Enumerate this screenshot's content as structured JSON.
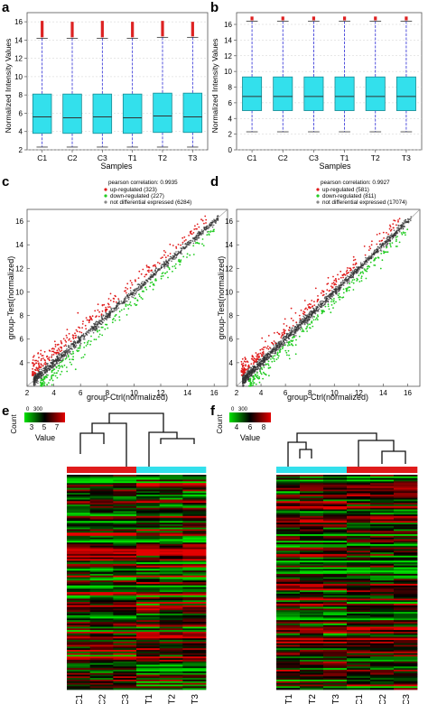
{
  "panel_labels": [
    "a",
    "b",
    "c",
    "d",
    "e",
    "f"
  ],
  "colors": {
    "box_fill": "#33e0ec",
    "box_stroke": "#1a8a92",
    "whisker": "#2b2bd6",
    "outlier": "#dd2222",
    "median": "#333333",
    "up": "#e01b1b",
    "down": "#22cc22",
    "notdiff": "#333333",
    "ctrl_bar": "#e01b1b",
    "test_bar": "#33e0ec",
    "heat_low": "#00e400",
    "heat_mid": "#000000",
    "heat_high": "#e40000"
  },
  "chart_data": [
    {
      "panel": "a",
      "type": "box",
      "xlabel": "Samples",
      "ylabel": "Normalized Intensity Values",
      "ylim": [
        2,
        17
      ],
      "yticks": [
        2,
        4,
        6,
        8,
        10,
        12,
        14,
        16
      ],
      "grid": true,
      "categories": [
        "C1",
        "C2",
        "C3",
        "T1",
        "T2",
        "T3"
      ],
      "boxes": [
        {
          "q1": 3.8,
          "median": 5.6,
          "q3": 8.1,
          "wlow": 2.3,
          "whigh": 14.2,
          "omax": 16.1
        },
        {
          "q1": 3.8,
          "median": 5.5,
          "q3": 8.1,
          "wlow": 2.3,
          "whigh": 14.2,
          "omax": 16.0
        },
        {
          "q1": 3.8,
          "median": 5.6,
          "q3": 8.1,
          "wlow": 2.3,
          "whigh": 14.2,
          "omax": 16.1
        },
        {
          "q1": 3.8,
          "median": 5.5,
          "q3": 8.1,
          "wlow": 2.3,
          "whigh": 14.2,
          "omax": 16.0
        },
        {
          "q1": 3.9,
          "median": 5.7,
          "q3": 8.2,
          "wlow": 2.3,
          "whigh": 14.3,
          "omax": 16.1
        },
        {
          "q1": 3.9,
          "median": 5.6,
          "q3": 8.2,
          "wlow": 2.3,
          "whigh": 14.3,
          "omax": 16.0
        }
      ]
    },
    {
      "panel": "b",
      "type": "box",
      "xlabel": "Samples",
      "ylabel": "Normalized Intensity Values",
      "ylim": [
        0,
        17.5
      ],
      "yticks": [
        0,
        2,
        4,
        6,
        8,
        10,
        12,
        14,
        16
      ],
      "grid": true,
      "categories": [
        "C1",
        "C2",
        "C3",
        "T1",
        "T2",
        "T3"
      ],
      "boxes": [
        {
          "q1": 5.0,
          "median": 6.8,
          "q3": 9.3,
          "wlow": 2.3,
          "whigh": 16.4,
          "omax": 17.0
        },
        {
          "q1": 5.0,
          "median": 6.8,
          "q3": 9.3,
          "wlow": 2.3,
          "whigh": 16.4,
          "omax": 17.0
        },
        {
          "q1": 5.0,
          "median": 6.8,
          "q3": 9.3,
          "wlow": 2.3,
          "whigh": 16.4,
          "omax": 17.0
        },
        {
          "q1": 5.0,
          "median": 6.8,
          "q3": 9.3,
          "wlow": 2.3,
          "whigh": 16.4,
          "omax": 17.0
        },
        {
          "q1": 5.0,
          "median": 6.8,
          "q3": 9.3,
          "wlow": 2.3,
          "whigh": 16.4,
          "omax": 17.0
        },
        {
          "q1": 5.0,
          "median": 6.8,
          "q3": 9.3,
          "wlow": 2.3,
          "whigh": 16.4,
          "omax": 17.0
        }
      ]
    },
    {
      "panel": "c",
      "type": "scatter",
      "xlabel": "group-Ctrl(normalized)",
      "ylabel": "group-Test(normalized)",
      "xlim": [
        2,
        17
      ],
      "ylim": [
        2,
        17
      ],
      "xticks": [
        2,
        4,
        6,
        8,
        10,
        12,
        14,
        16
      ],
      "yticks": [
        4,
        6,
        8,
        10,
        12,
        14,
        16
      ],
      "legend": {
        "title": "pearson correlation: 0.9935",
        "entries": [
          "up-regulated (323)",
          "down-regulated (227)",
          "not differential expressed (6284)"
        ],
        "position": "top"
      },
      "counts": {
        "up": 323,
        "down": 227,
        "notdiff": 6284
      },
      "seed": 11
    },
    {
      "panel": "d",
      "type": "scatter",
      "xlabel": "group-Ctrl(normalized)",
      "ylabel": "group-Test(normalized)",
      "xlim": [
        2,
        17
      ],
      "ylim": [
        2,
        17
      ],
      "xticks": [
        2,
        4,
        6,
        8,
        10,
        12,
        14,
        16
      ],
      "yticks": [
        4,
        6,
        8,
        10,
        12,
        14,
        16
      ],
      "legend": {
        "title": "pearson correlation: 0.9927",
        "entries": [
          "up-regulated (581)",
          "down-regulated (811)",
          "not differential expressed (17074)"
        ],
        "position": "top"
      },
      "counts": {
        "up": 581,
        "down": 811,
        "notdiff": 17074
      },
      "seed": 29
    },
    {
      "panel": "e",
      "type": "heatmap",
      "colorkey": {
        "title": "Count",
        "count_ticks": [
          "0",
          "300"
        ],
        "ticks": [
          "3",
          "5",
          "7"
        ],
        "label": "Value"
      },
      "columns": [
        "C1",
        "C2",
        "C3",
        "T1",
        "T2",
        "T3"
      ],
      "groups": [
        "ctrl",
        "ctrl",
        "ctrl",
        "test",
        "test",
        "test"
      ],
      "seed": 5
    },
    {
      "panel": "f",
      "type": "heatmap",
      "colorkey": {
        "title": "Count",
        "count_ticks": [
          "0",
          "300"
        ],
        "ticks": [
          "4",
          "6",
          "8"
        ],
        "label": "Value"
      },
      "columns": [
        "T1",
        "T2",
        "T3",
        "C1",
        "C2",
        "C3"
      ],
      "groups": [
        "test",
        "test",
        "test",
        "ctrl",
        "ctrl",
        "ctrl"
      ],
      "seed": 17
    }
  ]
}
